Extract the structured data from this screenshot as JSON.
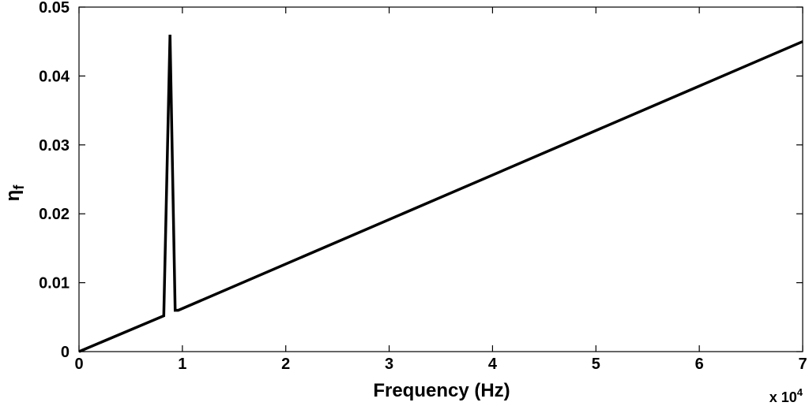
{
  "chart_data": {
    "type": "line",
    "xlabel": "Frequency (Hz)",
    "ylabel": {
      "symbol": "η",
      "subscript": "f"
    },
    "x_multiplier": {
      "prefix": "x 10",
      "exponent": "4"
    },
    "xlim": [
      0,
      70000
    ],
    "ylim": [
      0,
      0.05
    ],
    "x_tick_values": [
      0,
      10000,
      20000,
      30000,
      40000,
      50000,
      60000,
      70000
    ],
    "x_tick_labels": [
      "0",
      "1",
      "2",
      "3",
      "4",
      "5",
      "6",
      "7"
    ],
    "y_tick_values": [
      0,
      0.01,
      0.02,
      0.03,
      0.04,
      0.05
    ],
    "y_tick_labels": [
      "0",
      "0.01",
      "0.02",
      "0.03",
      "0.04",
      "0.05"
    ],
    "grid": false,
    "series": [
      {
        "line_color": "#000000",
        "x": [
          0,
          8200,
          8800,
          9300,
          9600,
          70000
        ],
        "y": [
          0,
          0.0052,
          0.046,
          0.006,
          0.006,
          0.045
        ]
      }
    ]
  }
}
